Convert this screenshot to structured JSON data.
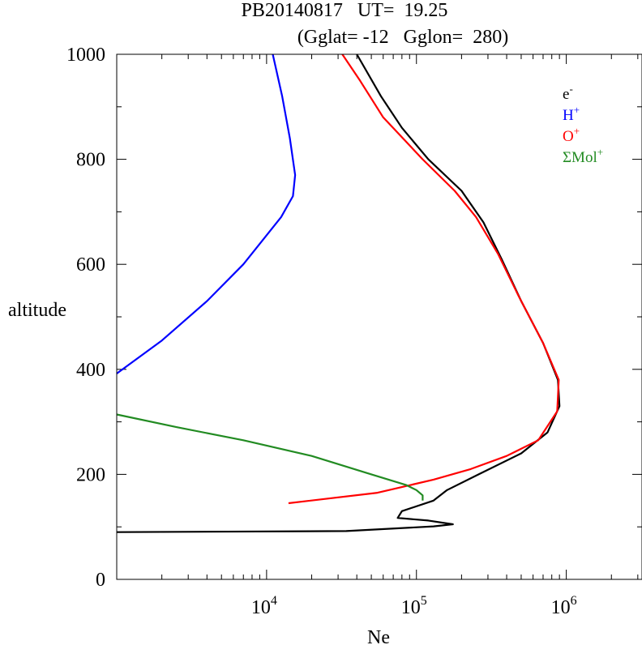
{
  "chart_data": {
    "type": "line",
    "title": "PB20140817   UT=  19.25",
    "subtitle": "(Gglat= -12   Gglon=  280)",
    "xlabel": "Ne",
    "ylabel": "altitude",
    "x_scale": "log",
    "xlim": [
      1000,
      3200000
    ],
    "ylim": [
      0,
      1000
    ],
    "x_ticks": [
      {
        "value": 10000,
        "base": "10",
        "exp": "4"
      },
      {
        "value": 100000,
        "base": "10",
        "exp": "5"
      },
      {
        "value": 1000000,
        "base": "10",
        "exp": "6"
      }
    ],
    "y_ticks": [
      0,
      200,
      400,
      600,
      800,
      1000
    ],
    "legend_placement": "top-right",
    "series": [
      {
        "name": "e-",
        "legend_base": "e",
        "legend_sup": "-",
        "color": "#000000",
        "points": [
          [
            1000,
            90
          ],
          [
            34000,
            92
          ],
          [
            130000,
            101
          ],
          [
            175000,
            105
          ],
          [
            120000,
            112
          ],
          [
            75000,
            117
          ],
          [
            80000,
            130
          ],
          [
            130000,
            150
          ],
          [
            160000,
            170
          ],
          [
            260000,
            200
          ],
          [
            500000,
            240
          ],
          [
            750000,
            280
          ],
          [
            900000,
            330
          ],
          [
            880000,
            380
          ],
          [
            700000,
            450
          ],
          [
            500000,
            530
          ],
          [
            370000,
            610
          ],
          [
            280000,
            680
          ],
          [
            200000,
            740
          ],
          [
            120000,
            800
          ],
          [
            80000,
            860
          ],
          [
            58000,
            920
          ],
          [
            40000,
            1000
          ]
        ]
      },
      {
        "name": "H+",
        "legend_base": "H",
        "legend_sup": "+",
        "color": "#0000ff",
        "points": [
          [
            1000,
            392
          ],
          [
            2000,
            455
          ],
          [
            4000,
            530
          ],
          [
            7000,
            600
          ],
          [
            12500,
            690
          ],
          [
            15000,
            730
          ],
          [
            15500,
            770
          ],
          [
            14300,
            840
          ],
          [
            12700,
            920
          ],
          [
            11000,
            1000
          ]
        ]
      },
      {
        "name": "O+",
        "legend_base": "O",
        "legend_sup": "+",
        "color": "#ff0000",
        "points": [
          [
            14000,
            145
          ],
          [
            55000,
            165
          ],
          [
            130000,
            190
          ],
          [
            230000,
            210
          ],
          [
            400000,
            235
          ],
          [
            650000,
            265
          ],
          [
            870000,
            320
          ],
          [
            890000,
            380
          ],
          [
            700000,
            450
          ],
          [
            480000,
            540
          ],
          [
            350000,
            620
          ],
          [
            250000,
            690
          ],
          [
            180000,
            740
          ],
          [
            110000,
            800
          ],
          [
            60000,
            880
          ],
          [
            42000,
            950
          ],
          [
            32000,
            1000
          ]
        ]
      },
      {
        "name": "ΣMol+",
        "legend_base": "ΣMol",
        "legend_sup": "+",
        "color": "#228b22",
        "points": [
          [
            1000,
            314
          ],
          [
            2500,
            290
          ],
          [
            7000,
            265
          ],
          [
            20000,
            235
          ],
          [
            50000,
            200
          ],
          [
            85000,
            180
          ],
          [
            100000,
            170
          ],
          [
            110000,
            160
          ],
          [
            110000,
            150
          ]
        ]
      }
    ]
  }
}
